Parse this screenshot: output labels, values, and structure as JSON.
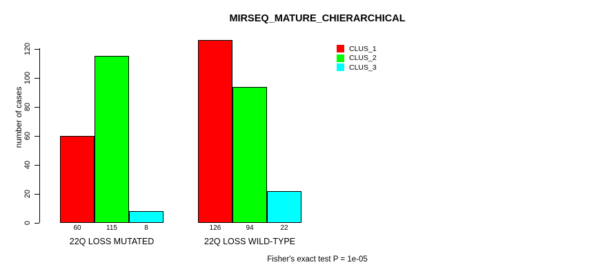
{
  "title": "MIRSEQ_MATURE_CHIERARCHICAL",
  "footer": "Fisher's exact test P = 1e-05",
  "colors": {
    "background": "#FFFFFF",
    "axis": "#000000",
    "text": "#000000",
    "bar_border": "#000000",
    "clus_1": "#FF0000",
    "clus_2": "#00FF00",
    "clus_3": "#00FFFF"
  },
  "chart_data": {
    "type": "bar",
    "title": "MIRSEQ_MATURE_CHIERARCHICAL",
    "xlabel": "",
    "ylabel": "number of cases",
    "ylim": [
      0,
      126
    ],
    "yticks": [
      0,
      20,
      40,
      60,
      80,
      100,
      120
    ],
    "grid": false,
    "bar_value_labels": true,
    "legend_position": "top-right",
    "categories": [
      "22Q LOSS MUTATED",
      "22Q LOSS WILD-TYPE"
    ],
    "series": [
      {
        "name": "CLUS_1",
        "color": "#FF0000",
        "values": [
          60,
          126
        ]
      },
      {
        "name": "CLUS_2",
        "color": "#00FF00",
        "values": [
          115,
          94
        ]
      },
      {
        "name": "CLUS_3",
        "color": "#00FFFF",
        "values": [
          8,
          22
        ]
      }
    ],
    "annotation": "Fisher's exact test P = 1e-05"
  }
}
